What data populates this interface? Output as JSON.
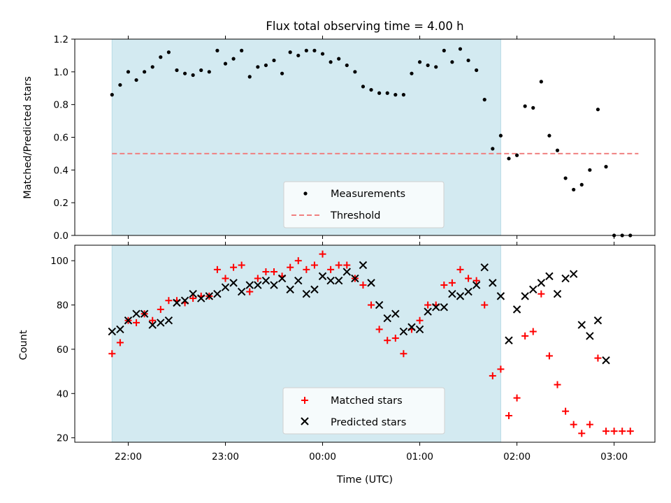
{
  "colors": {
    "band": "#d3eaf1",
    "band_edge": "#b8dbe6",
    "measurement": "#000000",
    "threshold": "#f08080",
    "matched": "#ff0000",
    "predicted": "#000000"
  },
  "chart_data": [
    {
      "type": "scatter",
      "title": "Flux total observing time = 4.00 h",
      "xlabel": "",
      "ylabel": "Matched/Predicted stars",
      "ylim": [
        0.0,
        1.2
      ],
      "yticks": [
        "0.0",
        "0.2",
        "0.4",
        "0.6",
        "0.8",
        "1.0",
        "1.2"
      ],
      "shaded_interval": [
        "21:50",
        "01:50"
      ],
      "legend_placement": "lower-center",
      "series": [
        {
          "name": "Measurements",
          "marker": "dot",
          "x": [
            "21:50",
            "21:55",
            "22:00",
            "22:05",
            "22:10",
            "22:15",
            "22:20",
            "22:25",
            "22:30",
            "22:35",
            "22:40",
            "22:45",
            "22:50",
            "22:55",
            "23:00",
            "23:05",
            "23:10",
            "23:15",
            "23:20",
            "23:25",
            "23:30",
            "23:35",
            "23:40",
            "23:45",
            "23:50",
            "23:55",
            "00:00",
            "00:05",
            "00:10",
            "00:15",
            "00:20",
            "00:25",
            "00:30",
            "00:35",
            "00:40",
            "00:45",
            "00:50",
            "00:55",
            "01:00",
            "01:05",
            "01:10",
            "01:15",
            "01:20",
            "01:25",
            "01:30",
            "01:35",
            "01:40",
            "01:45",
            "01:50",
            "01:55",
            "02:00",
            "02:05",
            "02:10",
            "02:15",
            "02:20",
            "02:25",
            "02:30",
            "02:35",
            "02:40",
            "02:45",
            "02:50",
            "02:55",
            "03:00",
            "03:05",
            "03:10"
          ],
          "values": [
            0.86,
            0.92,
            1.0,
            0.95,
            1.0,
            1.03,
            1.09,
            1.12,
            1.01,
            0.99,
            0.98,
            1.01,
            1.0,
            1.13,
            1.05,
            1.08,
            1.13,
            0.97,
            1.03,
            1.04,
            1.07,
            0.99,
            1.12,
            1.1,
            1.13,
            1.13,
            1.11,
            1.06,
            1.08,
            1.04,
            1.0,
            0.91,
            0.89,
            0.87,
            0.87,
            0.86,
            0.86,
            0.99,
            1.06,
            1.04,
            1.03,
            1.13,
            1.06,
            1.14,
            1.07,
            1.01,
            0.83,
            0.53,
            0.61,
            0.47,
            0.49,
            0.79,
            0.78,
            0.94,
            0.61,
            0.52,
            0.35,
            0.28,
            0.31,
            0.4,
            0.77,
            0.42,
            0.0,
            0.0,
            0.0
          ]
        },
        {
          "name": "Threshold",
          "marker": "dashed-line",
          "x": [
            "21:50",
            "03:15"
          ],
          "values": [
            0.5,
            0.5
          ]
        }
      ]
    },
    {
      "type": "scatter",
      "title": "",
      "xlabel": "Time (UTC)",
      "ylabel": "Count",
      "ylim": [
        18,
        107
      ],
      "yticks": [
        "20",
        "40",
        "60",
        "80",
        "100"
      ],
      "xticks": [
        "22:00",
        "23:00",
        "00:00",
        "01:00",
        "02:00",
        "03:00"
      ],
      "shaded_interval": [
        "21:50",
        "01:50"
      ],
      "legend_placement": "lower-center",
      "series": [
        {
          "name": "Matched stars",
          "marker": "plus",
          "x": [
            "21:50",
            "21:55",
            "22:00",
            "22:05",
            "22:10",
            "22:15",
            "22:20",
            "22:25",
            "22:30",
            "22:35",
            "22:40",
            "22:45",
            "22:50",
            "22:55",
            "23:00",
            "23:05",
            "23:10",
            "23:15",
            "23:20",
            "23:25",
            "23:30",
            "23:35",
            "23:40",
            "23:45",
            "23:50",
            "23:55",
            "00:00",
            "00:05",
            "00:10",
            "00:15",
            "00:20",
            "00:25",
            "00:30",
            "00:35",
            "00:40",
            "00:45",
            "00:50",
            "00:55",
            "01:00",
            "01:05",
            "01:10",
            "01:15",
            "01:20",
            "01:25",
            "01:30",
            "01:35",
            "01:40",
            "01:45",
            "01:50",
            "01:55",
            "02:00",
            "02:05",
            "02:10",
            "02:15",
            "02:20",
            "02:25",
            "02:30",
            "02:35",
            "02:40",
            "02:45",
            "02:50",
            "02:55",
            "03:00",
            "03:05",
            "03:10"
          ],
          "values": [
            58,
            63,
            73,
            72,
            76,
            73,
            78,
            82,
            82,
            81,
            83,
            84,
            84,
            96,
            92,
            97,
            98,
            86,
            92,
            95,
            95,
            93,
            97,
            100,
            96,
            98,
            103,
            96,
            98,
            98,
            92,
            89,
            80,
            69,
            64,
            65,
            58,
            69,
            73,
            80,
            80,
            89,
            90,
            96,
            92,
            91,
            80,
            48,
            51,
            30,
            38,
            66,
            68,
            85,
            57,
            44,
            32,
            26,
            22,
            26,
            56,
            23,
            23,
            23,
            23
          ]
        },
        {
          "name": "Predicted stars",
          "marker": "x",
          "x": [
            "21:50",
            "21:55",
            "22:00",
            "22:05",
            "22:10",
            "22:15",
            "22:20",
            "22:25",
            "22:30",
            "22:35",
            "22:40",
            "22:45",
            "22:50",
            "22:55",
            "23:00",
            "23:05",
            "23:10",
            "23:15",
            "23:20",
            "23:25",
            "23:30",
            "23:35",
            "23:40",
            "23:45",
            "23:50",
            "23:55",
            "00:00",
            "00:05",
            "00:10",
            "00:15",
            "00:20",
            "00:25",
            "00:30",
            "00:35",
            "00:40",
            "00:45",
            "00:50",
            "00:55",
            "01:00",
            "01:05",
            "01:10",
            "01:15",
            "01:20",
            "01:25",
            "01:30",
            "01:35",
            "01:40",
            "01:45",
            "01:50",
            "01:55",
            "02:00",
            "02:05",
            "02:10",
            "02:15",
            "02:20",
            "02:25",
            "02:30",
            "02:35",
            "02:40",
            "02:45",
            "02:50",
            "02:55"
          ],
          "values": [
            68,
            69,
            73,
            76,
            76,
            71,
            72,
            73,
            81,
            82,
            85,
            83,
            84,
            85,
            88,
            90,
            86,
            89,
            89,
            91,
            89,
            92,
            87,
            91,
            85,
            87,
            93,
            91,
            91,
            95,
            92,
            98,
            90,
            80,
            74,
            76,
            68,
            70,
            69,
            77,
            79,
            79,
            85,
            84,
            86,
            89,
            97,
            90,
            84,
            64,
            78,
            84,
            87,
            90,
            93,
            85,
            92,
            94,
            71,
            66,
            73,
            55
          ]
        }
      ]
    }
  ]
}
